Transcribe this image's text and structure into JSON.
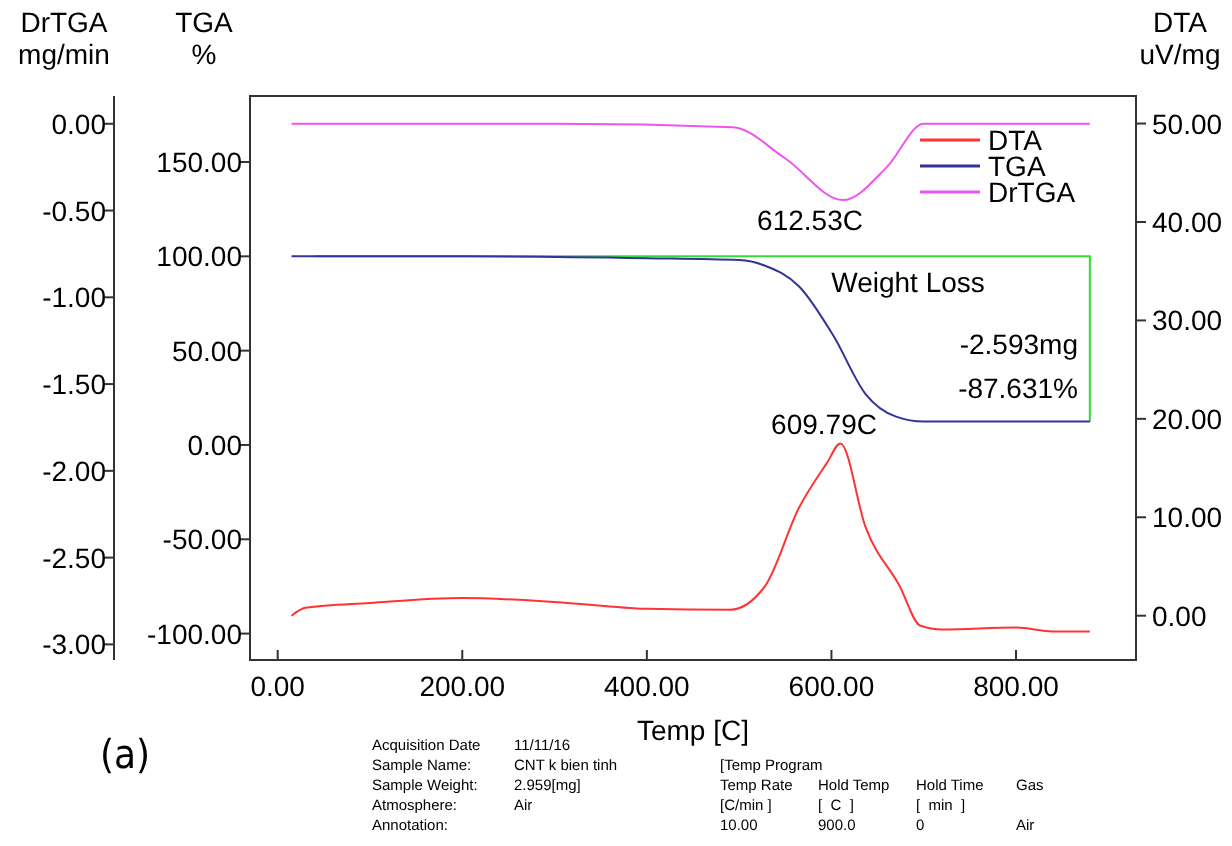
{
  "chart_data": {
    "type": "line",
    "xlabel": "Temp [C]",
    "ylabel": "TGA\n%",
    "y2label": "DTA\nuV/mg",
    "y3label": "DrTGA\nmg/min",
    "xlim": [
      -30,
      930
    ],
    "xticks": [
      {
        "value": 0,
        "label": "0.00"
      },
      {
        "value": 200,
        "label": "200.00"
      },
      {
        "value": 400,
        "label": "400.00"
      },
      {
        "value": 600,
        "label": "600.00"
      },
      {
        "value": 800,
        "label": "800.00"
      }
    ],
    "ylim": [
      -114,
      185
    ],
    "yticks": [
      {
        "value": -100,
        "label": "-100.00"
      },
      {
        "value": -50,
        "label": "-50.00"
      },
      {
        "value": 0,
        "label": "0.00"
      },
      {
        "value": 50,
        "label": "50.00"
      },
      {
        "value": 100,
        "label": "100.00"
      },
      {
        "value": 150,
        "label": "150.00"
      }
    ],
    "y2lim": [
      -4.5,
      52.8
    ],
    "y2ticks": [
      {
        "value": 0,
        "label": "0.00"
      },
      {
        "value": 10,
        "label": "10.00"
      },
      {
        "value": 20,
        "label": "20.00"
      },
      {
        "value": 30,
        "label": "30.00"
      },
      {
        "value": 40,
        "label": "40.00"
      },
      {
        "value": 50,
        "label": "50.00"
      }
    ],
    "y3lim": [
      -3.09,
      0.16
    ],
    "y3ticks": [
      {
        "value": -3,
        "label": "-3.00"
      },
      {
        "value": -2.5,
        "label": "-2.50"
      },
      {
        "value": -2,
        "label": "-2.00"
      },
      {
        "value": -1.5,
        "label": "-1.50"
      },
      {
        "value": -1,
        "label": "-1.00"
      },
      {
        "value": -0.5,
        "label": "-0.50"
      },
      {
        "value": 0,
        "label": "0.00"
      }
    ],
    "legend": "top right",
    "grid": false,
    "marker": "none",
    "line_style": "solid",
    "series": [
      {
        "name": "DTA",
        "color": "#ff3333",
        "axis": "y2",
        "x": [
          15,
          30,
          100,
          200,
          300,
          400,
          490,
          528,
          565,
          595,
          609.79,
          637,
          674,
          696,
          720,
          800,
          840,
          880
        ],
        "values": [
          0,
          0.8,
          1.3,
          1.8,
          1.4,
          0.7,
          0.6,
          3,
          11,
          15.5,
          17.5,
          9,
          3,
          -1,
          -1.4,
          -1.2,
          -1.6,
          -1.6
        ]
      },
      {
        "name": "TGA",
        "color": "#333399",
        "axis": "y",
        "x": [
          15,
          200,
          400,
          500,
          528,
          565,
          602,
          637,
          670,
          700,
          880
        ],
        "values": [
          100,
          100,
          99,
          98,
          95,
          84,
          58,
          27,
          15,
          12.4,
          12.4
        ]
      },
      {
        "name": "DrTGA",
        "color": "#ee55ee",
        "axis": "y3",
        "x": [
          15,
          300,
          493,
          550,
          612.53,
          660,
          700,
          880
        ],
        "values": [
          0,
          0,
          -0.02,
          -0.2,
          -0.44,
          -0.25,
          0,
          0
        ]
      }
    ],
    "annotations": [
      "612.53C",
      "609.79C",
      "(a)",
      "Weight Loss",
      "-2.593mg",
      "-87.631%",
      "Acquisition Date\t11/11/16",
      "Sample Name:\tCNT k bien tinh",
      "Sample Weight:\t2.959[mg]",
      "Atmosphere:\tAir",
      "Annotation:",
      "[Temp Program",
      "Temp Rate\tHold Temp\tHold Time\tGas",
      "[C/min ]\t[  C  ]\t[  min  ]",
      "10.00\t900.0\t0\tAir"
    ]
  }
}
